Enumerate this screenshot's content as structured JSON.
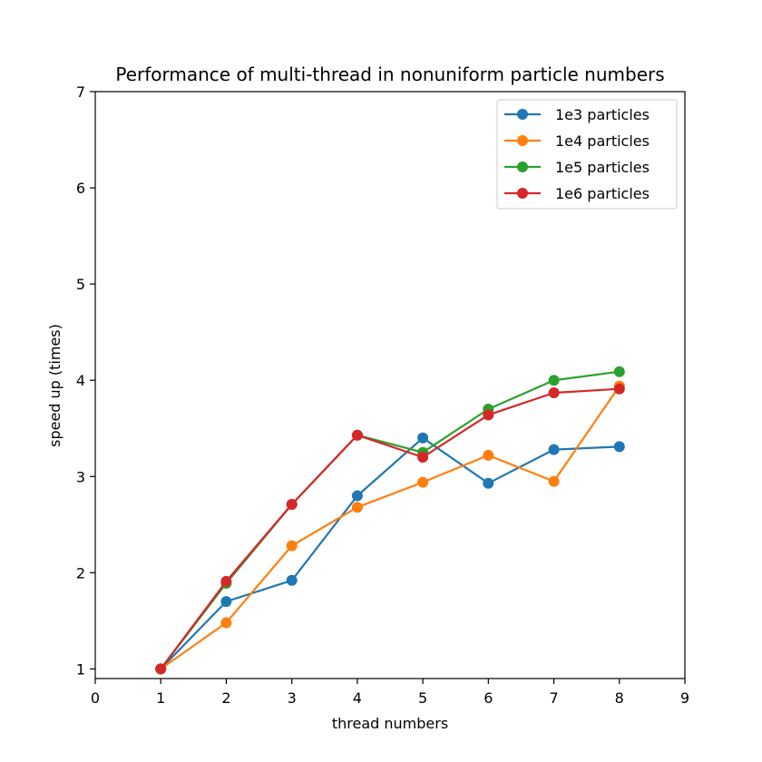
{
  "chart_data": {
    "type": "line",
    "title": "Performance of multi-thread in nonuniform particle numbers",
    "xlabel": "thread numbers",
    "ylabel": "speed up (times)",
    "xlim": [
      0,
      9
    ],
    "ylim": [
      0.9,
      7
    ],
    "xticks": [
      0,
      1,
      2,
      3,
      4,
      5,
      6,
      7,
      8,
      9
    ],
    "yticks": [
      1,
      2,
      3,
      4,
      5,
      6,
      7
    ],
    "grid": false,
    "legend_position": "top-right",
    "x": [
      1,
      2,
      3,
      4,
      5,
      6,
      7,
      8
    ],
    "series": [
      {
        "name": "1e3 particles",
        "color": "#1f77b4",
        "values": [
          1.0,
          1.7,
          1.92,
          2.8,
          3.4,
          2.93,
          3.28,
          3.31
        ]
      },
      {
        "name": "1e4 particles",
        "color": "#ff7f0e",
        "values": [
          1.0,
          1.48,
          2.28,
          2.68,
          2.94,
          3.22,
          2.95,
          3.94
        ]
      },
      {
        "name": "1e5 particles",
        "color": "#2ca02c",
        "values": [
          1.0,
          1.89,
          2.71,
          3.43,
          3.25,
          3.7,
          4.0,
          4.09
        ]
      },
      {
        "name": "1e6 particles",
        "color": "#d62728",
        "values": [
          1.0,
          1.91,
          2.71,
          3.43,
          3.2,
          3.64,
          3.87,
          3.91
        ]
      }
    ]
  }
}
